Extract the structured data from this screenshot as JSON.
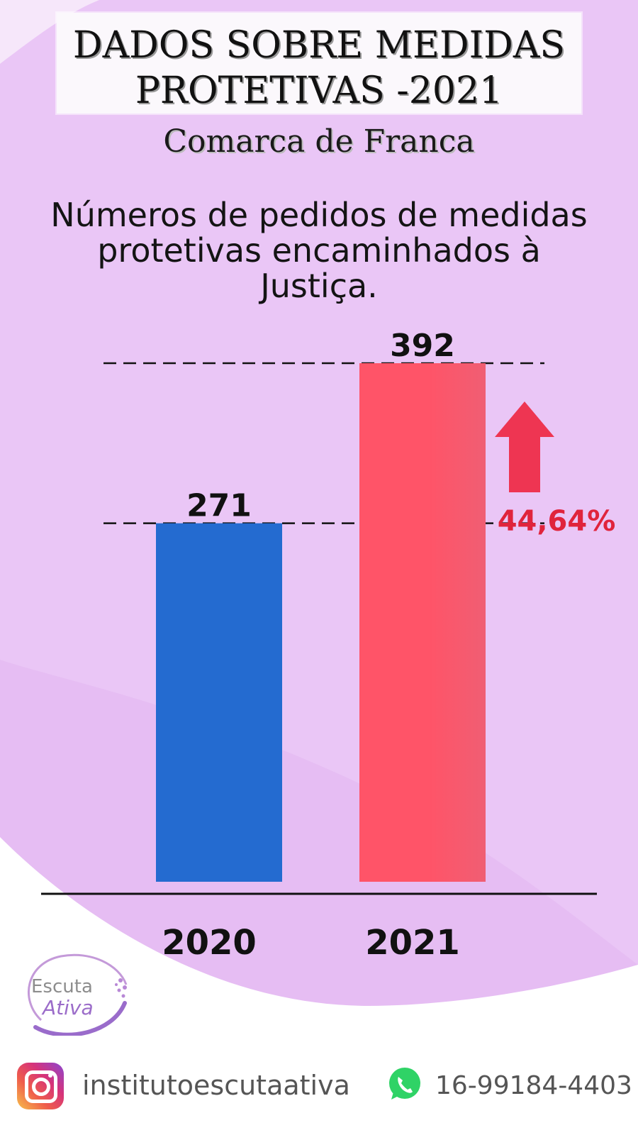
{
  "title": {
    "line1": "DADOS SOBRE MEDIDAS",
    "line2": "PROTETIVAS -2021",
    "subtitle": "Comarca de Franca"
  },
  "description": {
    "line1": "Números de pedidos de medidas",
    "line2": "protetivas encaminhados à",
    "line3": "Justiça."
  },
  "chart_data": {
    "type": "bar",
    "categories": [
      "2020",
      "2021"
    ],
    "values": [
      271,
      392
    ],
    "value_labels": [
      "271",
      "392"
    ],
    "ylim": [
      0,
      392
    ],
    "grid": false,
    "reference_lines": [
      271,
      392
    ],
    "annotation": "44,64%",
    "colors": [
      "#246bd0",
      "#ff5468"
    ]
  },
  "footer": {
    "instagram": "institutoescutaativa",
    "phone": "16-99184-4403"
  },
  "logo": {
    "line1": "Escuta",
    "line2": "Ativa"
  },
  "icons": {
    "social": "instagram-icon",
    "messaging": "whatsapp-icon",
    "trend": "arrow-up-icon"
  },
  "theme": {
    "background": "#e8c2f4",
    "background_dark": "#e2b7f3",
    "arrow_color": "#ee3552"
  }
}
